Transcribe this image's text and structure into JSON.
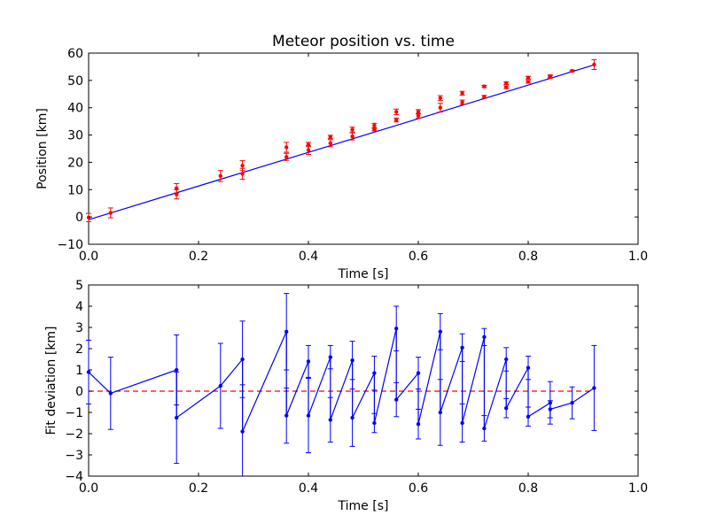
{
  "chart_data": [
    {
      "type": "scatter",
      "title": "Meteor position vs. time",
      "xlabel": "Time [s]",
      "ylabel": "Position [km]",
      "xlim": [
        0.0,
        1.0
      ],
      "ylim": [
        -10,
        60
      ],
      "xticks": [
        "0.0",
        "0.2",
        "0.4",
        "0.6",
        "0.8",
        "1.0"
      ],
      "yticks": [
        "−10",
        "0",
        "10",
        "20",
        "30",
        "40",
        "50",
        "60"
      ],
      "grid": false,
      "colors": {
        "points": "#ff0000",
        "fit": "#0000ff"
      },
      "series": [
        {
          "kind": "errorbar-points",
          "x": [
            0.0,
            0.04,
            0.16,
            0.16,
            0.24,
            0.28,
            0.28,
            0.36,
            0.36,
            0.4,
            0.4,
            0.44,
            0.44,
            0.48,
            0.48,
            0.52,
            0.52,
            0.56,
            0.56,
            0.6,
            0.6,
            0.64,
            0.64,
            0.68,
            0.68,
            0.72,
            0.72,
            0.76,
            0.76,
            0.8,
            0.8,
            0.84,
            0.84,
            0.88,
            0.92
          ],
          "y": [
            -0.2,
            1.5,
            10.5,
            8.3,
            15.0,
            18.8,
            15.8,
            25.5,
            22.0,
            26.5,
            24.5,
            29.3,
            27.0,
            32.0,
            29.5,
            33.5,
            32.0,
            38.5,
            35.5,
            38.5,
            37.0,
            43.5,
            40.0,
            45.3,
            42.0,
            47.8,
            44.0,
            49.0,
            47.5,
            51.0,
            49.5,
            51.5,
            51.3,
            53.5,
            55.8
          ],
          "yerr": [
            1.5,
            1.8,
            1.7,
            1.7,
            2.0,
            1.8,
            2.0,
            1.8,
            1.3,
            0.8,
            1.6,
            0.6,
            1.3,
            0.9,
            1.3,
            0.8,
            0.5,
            1.0,
            0.7,
            0.8,
            0.9,
            0.9,
            1.6,
            0.7,
            0.8,
            0.4,
            0.5,
            0.5,
            0.5,
            0.5,
            0.5,
            0.5,
            0.5,
            0.3,
            1.8
          ]
        },
        {
          "kind": "fit-line",
          "x": [
            0.0,
            0.92
          ],
          "y": [
            -1.0,
            55.7
          ]
        }
      ]
    },
    {
      "type": "line",
      "xlabel": "Time [s]",
      "ylabel": "Fit deviation [km]",
      "xlim": [
        0.0,
        1.0
      ],
      "ylim": [
        -4,
        5
      ],
      "xticks": [
        "0.0",
        "0.2",
        "0.4",
        "0.6",
        "0.8",
        "1.0"
      ],
      "yticks": [
        "−4",
        "−3",
        "−2",
        "−1",
        "0",
        "1",
        "2",
        "3",
        "4",
        "5"
      ],
      "grid": false,
      "colors": {
        "series": "#0000ff",
        "zero_line": "#ff0000"
      },
      "series": [
        {
          "kind": "errorbar-line",
          "x": [
            0.0,
            0.04,
            0.16,
            0.16,
            0.24,
            0.28,
            0.28,
            0.36,
            0.36,
            0.4,
            0.4,
            0.44,
            0.44,
            0.48,
            0.48,
            0.52,
            0.52,
            0.56,
            0.56,
            0.6,
            0.6,
            0.64,
            0.64,
            0.68,
            0.68,
            0.72,
            0.72,
            0.76,
            0.76,
            0.8,
            0.8,
            0.84,
            0.84,
            0.88,
            0.92
          ],
          "y": [
            0.9,
            -0.1,
            1.0,
            -1.25,
            0.25,
            1.5,
            -1.9,
            2.8,
            -1.15,
            1.4,
            -1.15,
            1.6,
            -1.35,
            1.45,
            -1.25,
            0.85,
            -1.5,
            2.95,
            -0.4,
            0.85,
            -1.55,
            2.8,
            -1.0,
            2.05,
            -1.5,
            2.55,
            -1.75,
            1.5,
            -0.8,
            1.1,
            -1.2,
            -0.55,
            -0.85,
            -0.55,
            0.15
          ],
          "yerr": [
            1.5,
            1.7,
            1.65,
            2.15,
            2.0,
            1.8,
            2.2,
            1.8,
            1.3,
            0.75,
            1.75,
            0.55,
            1.05,
            0.9,
            1.35,
            0.8,
            0.45,
            1.05,
            0.8,
            0.75,
            0.7,
            0.85,
            1.55,
            0.65,
            0.9,
            0.4,
            0.6,
            0.55,
            0.45,
            0.55,
            0.45,
            1.0,
            0.4,
            0.75,
            2.0
          ]
        },
        {
          "kind": "zero-line",
          "x": [
            0.0,
            0.92
          ],
          "y": [
            0,
            0
          ]
        }
      ]
    }
  ]
}
